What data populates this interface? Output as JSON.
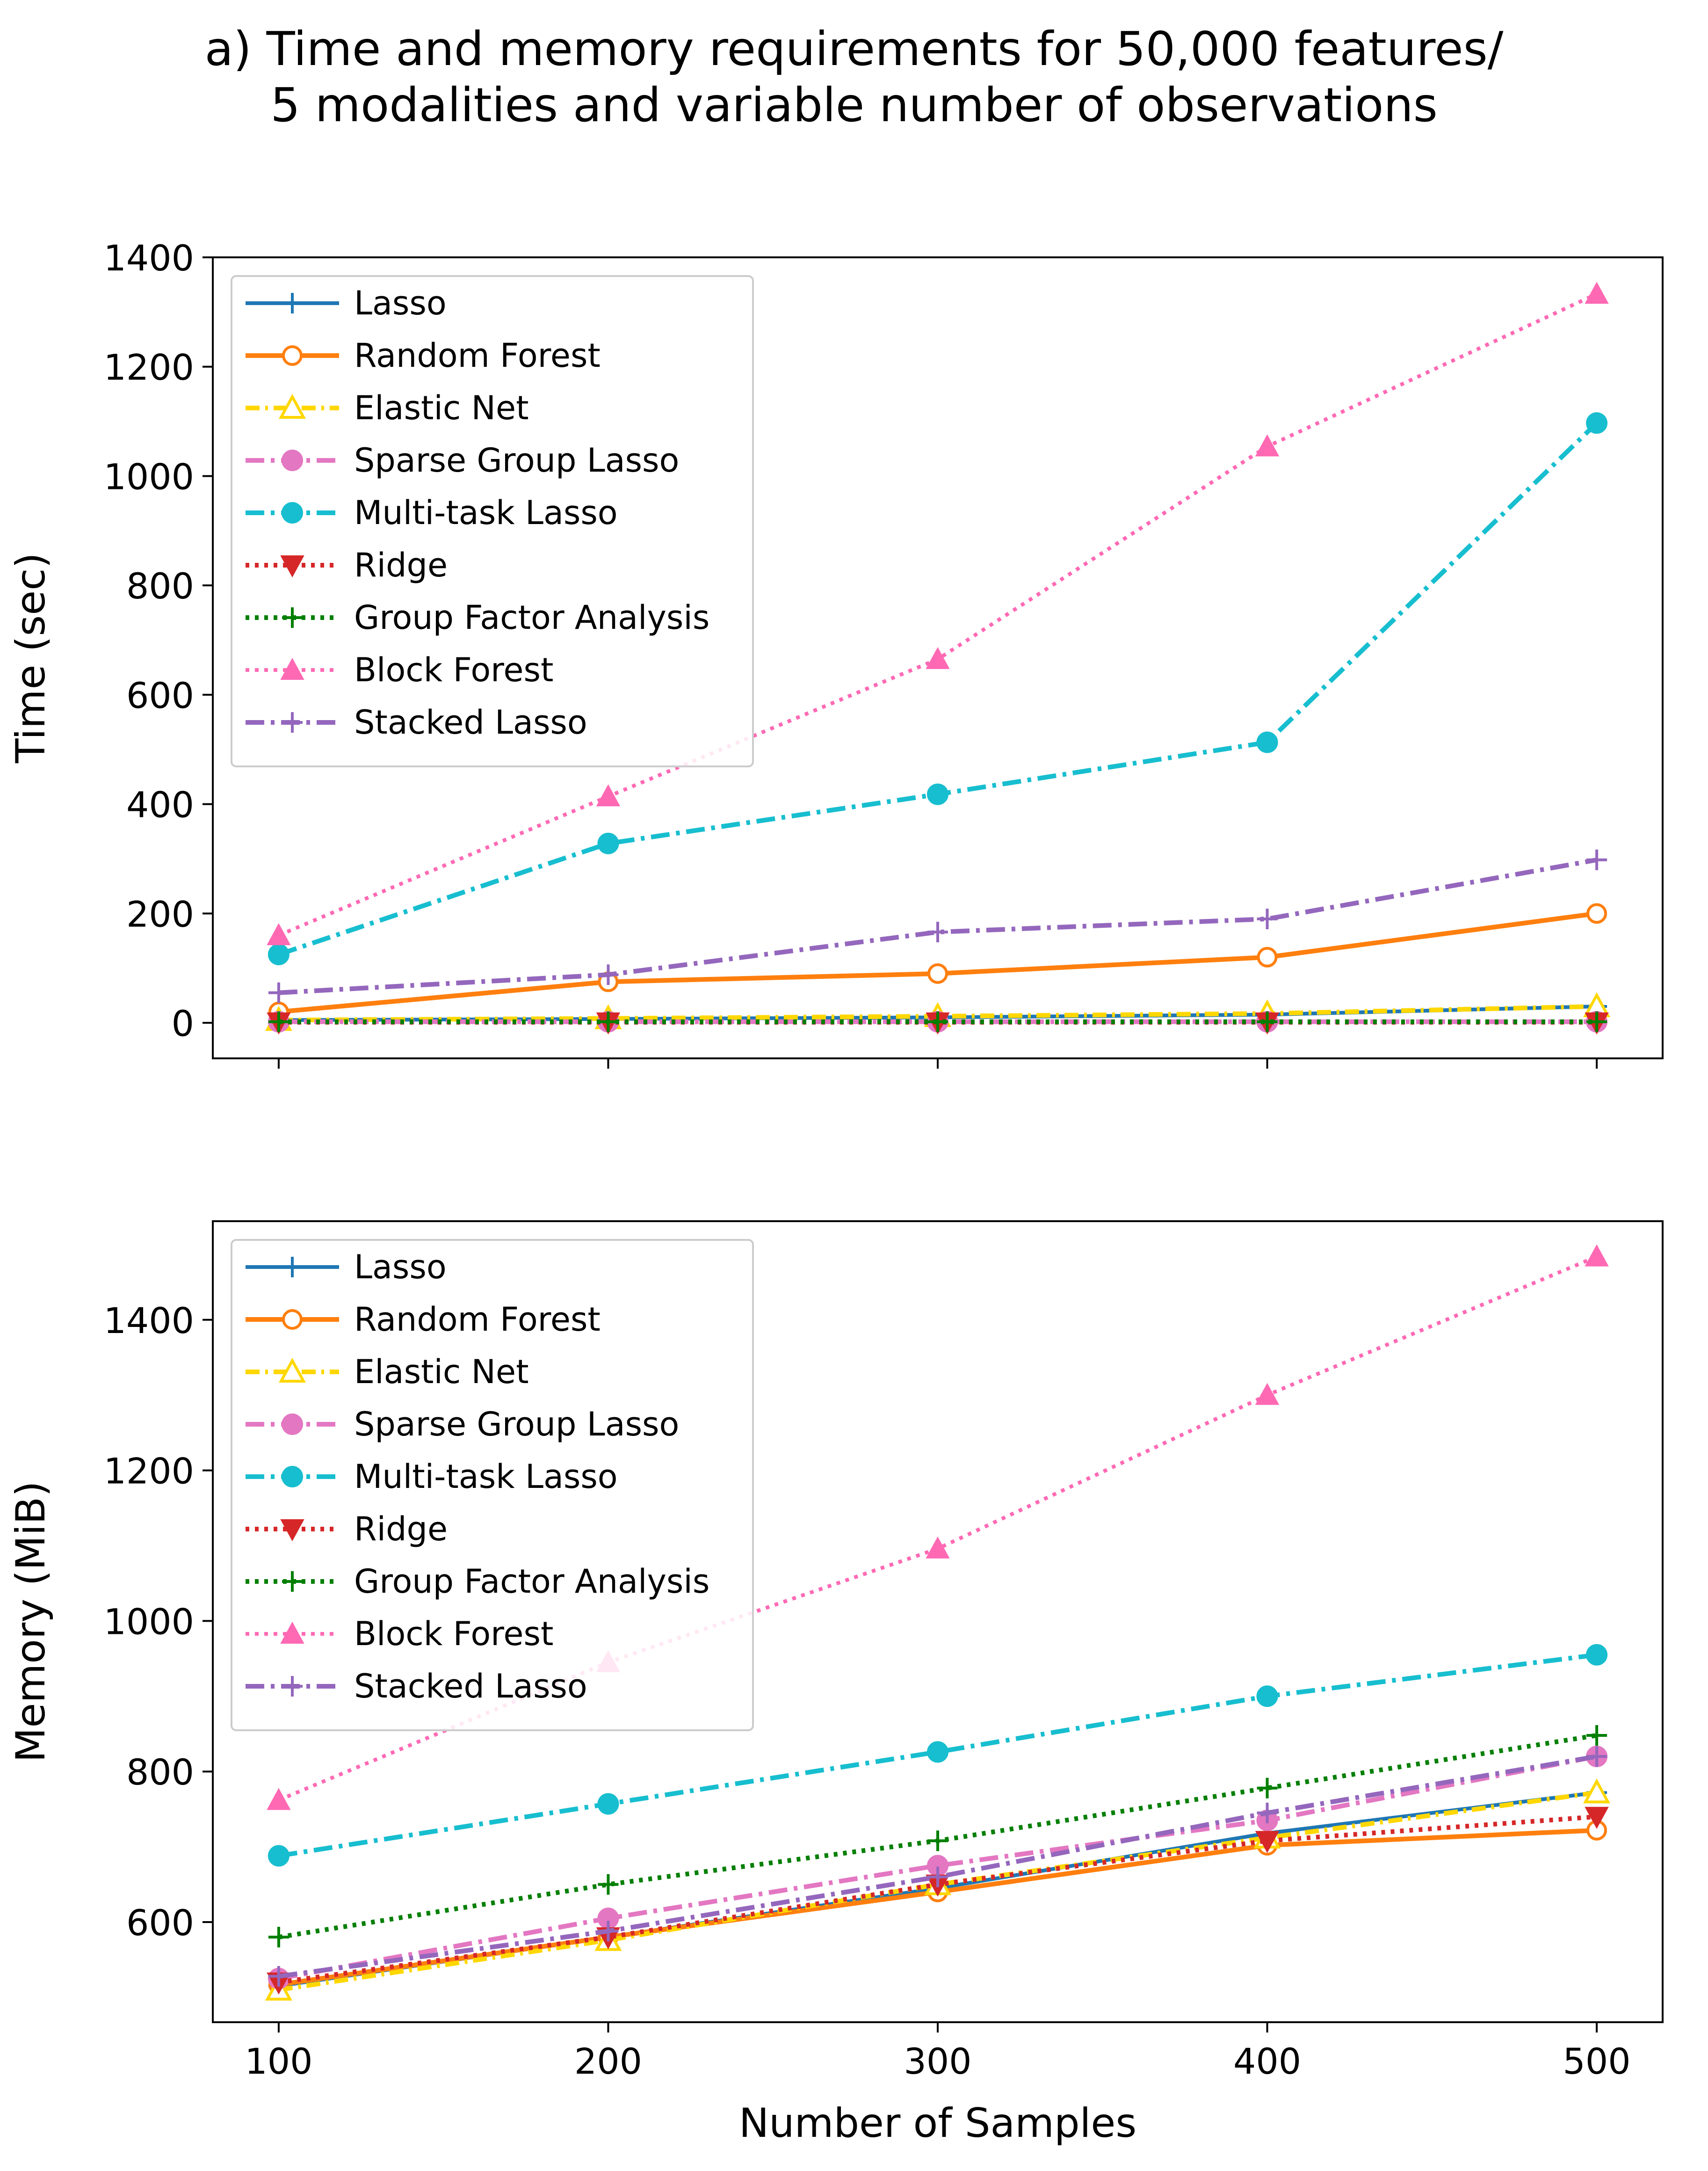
{
  "title_line1": "a) Time and memory requirements for 50,000 features/",
  "title_line2": "5 modalities and variable number of observations",
  "colors": {
    "Lasso": "#1f77b4",
    "Random Forest": "#ff7f0e",
    "Elastic Net": "#ffd700",
    "Sparse Group Lasso": "#e377c2",
    "Multi-task Lasso": "#17becf",
    "Ridge": "#d62728",
    "Group Factor Analysis": "#007f00",
    "Block Forest": "#ff69b4",
    "Stacked Lasso": "#9467bd"
  },
  "chart_data": [
    {
      "type": "line",
      "ylabel": "Time (sec)",
      "xlabel": "",
      "x": [
        100,
        200,
        300,
        400,
        500
      ],
      "ylim": [
        -65,
        1400
      ],
      "xlim": [
        80,
        520
      ],
      "yticks": [
        0,
        200,
        400,
        600,
        800,
        1000,
        1200,
        1400
      ],
      "legend_position": "top-left",
      "series": [
        {
          "name": "Lasso",
          "values": [
            5,
            7,
            10,
            15,
            30
          ]
        },
        {
          "name": "Random Forest",
          "values": [
            20,
            75,
            90,
            120,
            200
          ]
        },
        {
          "name": "Elastic Net",
          "values": [
            5,
            8,
            12,
            17,
            30
          ]
        },
        {
          "name": "Sparse Group Lasso",
          "values": [
            2,
            2,
            2,
            2,
            2
          ]
        },
        {
          "name": "Multi-task Lasso",
          "values": [
            125,
            328,
            418,
            513,
            1097
          ]
        },
        {
          "name": "Ridge",
          "values": [
            1,
            1,
            1,
            1,
            1
          ]
        },
        {
          "name": "Group Factor Analysis",
          "values": [
            2,
            2,
            2,
            2,
            2
          ]
        },
        {
          "name": "Block Forest",
          "values": [
            160,
            414,
            665,
            1054,
            1333
          ]
        },
        {
          "name": "Stacked Lasso",
          "values": [
            55,
            88,
            166,
            190,
            298
          ]
        }
      ]
    },
    {
      "type": "line",
      "ylabel": "Memory (MiB)",
      "xlabel": "Number of Samples",
      "x": [
        100,
        200,
        300,
        400,
        500
      ],
      "xticks": [
        "100",
        "200",
        "300",
        "400",
        "500"
      ],
      "ylim": [
        467,
        1531
      ],
      "xlim": [
        80,
        520
      ],
      "yticks": [
        600,
        800,
        1000,
        1200,
        1400
      ],
      "legend_position": "top-left",
      "series": [
        {
          "name": "Lasso",
          "values": [
            515,
            580,
            645,
            718,
            772
          ]
        },
        {
          "name": "Random Forest",
          "values": [
            517,
            580,
            640,
            702,
            722
          ]
        },
        {
          "name": "Elastic Net",
          "values": [
            510,
            576,
            650,
            712,
            772
          ]
        },
        {
          "name": "Sparse Group Lasso",
          "values": [
            525,
            605,
            675,
            735,
            820
          ]
        },
        {
          "name": "Multi-task Lasso",
          "values": [
            688,
            757,
            826,
            900,
            955
          ]
        },
        {
          "name": "Ridge",
          "values": [
            520,
            580,
            650,
            708,
            740
          ]
        },
        {
          "name": "Group Factor Analysis",
          "values": [
            580,
            650,
            708,
            778,
            848
          ]
        },
        {
          "name": "Block Forest",
          "values": [
            762,
            945,
            1096,
            1300,
            1484
          ]
        },
        {
          "name": "Stacked Lasso",
          "values": [
            528,
            588,
            660,
            745,
            820
          ]
        }
      ]
    }
  ]
}
